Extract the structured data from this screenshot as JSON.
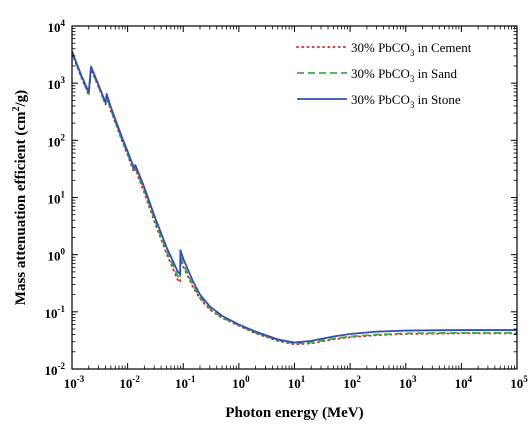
{
  "chart_data": {
    "type": "line",
    "xlabel": "Photon energy (MeV)",
    "ylabel_parts": {
      "main": "Mass attenuation efficient (cm",
      "sup": "2",
      "tail": "/g)"
    },
    "x_scale": "log",
    "y_scale": "log",
    "xlim": [
      0.001,
      100000
    ],
    "ylim": [
      0.01,
      10000
    ],
    "x_ticks": [
      {
        "base": "10",
        "exp": "-3"
      },
      {
        "base": "10",
        "exp": "-2"
      },
      {
        "base": "10",
        "exp": "-1"
      },
      {
        "base": "10",
        "exp": "0"
      },
      {
        "base": "10",
        "exp": "1"
      },
      {
        "base": "10",
        "exp": "2"
      },
      {
        "base": "10",
        "exp": "3"
      },
      {
        "base": "10",
        "exp": "4"
      },
      {
        "base": "10",
        "exp": "5"
      }
    ],
    "y_ticks": [
      {
        "base": "10",
        "exp": "-2"
      },
      {
        "base": "10",
        "exp": "-1"
      },
      {
        "base": "10",
        "exp": "0"
      },
      {
        "base": "10",
        "exp": "1"
      },
      {
        "base": "10",
        "exp": "2"
      },
      {
        "base": "10",
        "exp": "3"
      },
      {
        "base": "10",
        "exp": "4"
      }
    ],
    "legend_position": "top-right",
    "grid": false,
    "series": [
      {
        "name_parts": {
          "pre": "30% PbCO",
          "sub": "3",
          "post": " in Cement"
        },
        "color": "#cc2222",
        "style": "dotted",
        "points": [
          [
            0.001,
            3300
          ],
          [
            0.0015,
            1200
          ],
          [
            0.002,
            620
          ],
          [
            0.0022,
            1750
          ],
          [
            0.003,
            850
          ],
          [
            0.004,
            420
          ],
          [
            0.0042,
            560
          ],
          [
            0.005,
            330
          ],
          [
            0.008,
            95
          ],
          [
            0.01,
            55
          ],
          [
            0.013,
            28
          ],
          [
            0.0138,
            32
          ],
          [
            0.015,
            25
          ],
          [
            0.02,
            12
          ],
          [
            0.03,
            3.9
          ],
          [
            0.05,
            1.05
          ],
          [
            0.08,
            0.36
          ],
          [
            0.088,
            0.33
          ],
          [
            0.089,
            0.85
          ],
          [
            0.1,
            0.62
          ],
          [
            0.15,
            0.27
          ],
          [
            0.2,
            0.17
          ],
          [
            0.3,
            0.11
          ],
          [
            0.5,
            0.078
          ],
          [
            1,
            0.057
          ],
          [
            2,
            0.042
          ],
          [
            5,
            0.031
          ],
          [
            10,
            0.027
          ],
          [
            20,
            0.028
          ],
          [
            50,
            0.033
          ],
          [
            100,
            0.036
          ],
          [
            300,
            0.039
          ],
          [
            1000,
            0.041
          ],
          [
            10000,
            0.042
          ],
          [
            100000,
            0.042
          ]
        ]
      },
      {
        "name_parts": {
          "pre": "30% PbCO",
          "sub": "3",
          "post": " in Sand"
        },
        "color": "#44aa44",
        "style": "dashed",
        "points": [
          [
            0.001,
            3350
          ],
          [
            0.0015,
            1250
          ],
          [
            0.002,
            640
          ],
          [
            0.0022,
            1800
          ],
          [
            0.003,
            870
          ],
          [
            0.004,
            430
          ],
          [
            0.0042,
            580
          ],
          [
            0.005,
            340
          ],
          [
            0.008,
            100
          ],
          [
            0.01,
            58
          ],
          [
            0.013,
            30
          ],
          [
            0.0138,
            33
          ],
          [
            0.015,
            27
          ],
          [
            0.02,
            13.5
          ],
          [
            0.03,
            4.3
          ],
          [
            0.05,
            1.15
          ],
          [
            0.08,
            0.42
          ],
          [
            0.088,
            0.38
          ],
          [
            0.089,
            0.95
          ],
          [
            0.1,
            0.68
          ],
          [
            0.15,
            0.29
          ],
          [
            0.2,
            0.18
          ],
          [
            0.3,
            0.115
          ],
          [
            0.5,
            0.08
          ],
          [
            1,
            0.058
          ],
          [
            2,
            0.043
          ],
          [
            5,
            0.032
          ],
          [
            10,
            0.028
          ],
          [
            20,
            0.029
          ],
          [
            50,
            0.034
          ],
          [
            100,
            0.037
          ],
          [
            300,
            0.04
          ],
          [
            1000,
            0.042
          ],
          [
            10000,
            0.043
          ],
          [
            100000,
            0.043
          ]
        ]
      },
      {
        "name_parts": {
          "pre": "30% PbCO",
          "sub": "3",
          "post": " in Stone"
        },
        "color": "#3050b0",
        "style": "solid",
        "points": [
          [
            0.001,
            3600
          ],
          [
            0.0015,
            1300
          ],
          [
            0.002,
            700
          ],
          [
            0.0022,
            1950
          ],
          [
            0.003,
            930
          ],
          [
            0.004,
            460
          ],
          [
            0.0042,
            650
          ],
          [
            0.005,
            380
          ],
          [
            0.008,
            110
          ],
          [
            0.01,
            64
          ],
          [
            0.013,
            33
          ],
          [
            0.0138,
            37
          ],
          [
            0.015,
            30
          ],
          [
            0.02,
            15
          ],
          [
            0.03,
            4.9
          ],
          [
            0.05,
            1.35
          ],
          [
            0.08,
            0.5
          ],
          [
            0.088,
            0.46
          ],
          [
            0.089,
            1.2
          ],
          [
            0.1,
            0.85
          ],
          [
            0.15,
            0.34
          ],
          [
            0.2,
            0.2
          ],
          [
            0.3,
            0.125
          ],
          [
            0.5,
            0.085
          ],
          [
            1,
            0.06
          ],
          [
            2,
            0.045
          ],
          [
            5,
            0.033
          ],
          [
            10,
            0.029
          ],
          [
            20,
            0.031
          ],
          [
            50,
            0.037
          ],
          [
            100,
            0.041
          ],
          [
            300,
            0.045
          ],
          [
            1000,
            0.047
          ],
          [
            10000,
            0.048
          ],
          [
            100000,
            0.048
          ]
        ]
      }
    ]
  }
}
